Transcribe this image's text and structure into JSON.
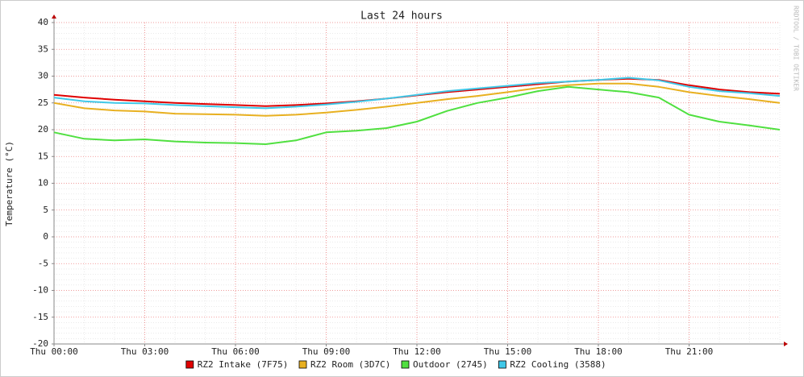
{
  "chart_data": {
    "type": "line",
    "title": "Last 24 hours",
    "y_label": "Temperature (°C)",
    "watermark": "RRDTOOL / TOBI OETIKER",
    "x": [
      0,
      1,
      2,
      3,
      4,
      5,
      6,
      7,
      8,
      9,
      10,
      11,
      12,
      13,
      14,
      15,
      16,
      17,
      18,
      19,
      20,
      21,
      22,
      23,
      24
    ],
    "xlim": [
      0,
      24
    ],
    "xticks": [
      {
        "value": 0,
        "label": "Thu 00:00"
      },
      {
        "value": 3,
        "label": "Thu 03:00"
      },
      {
        "value": 6,
        "label": "Thu 06:00"
      },
      {
        "value": 9,
        "label": "Thu 09:00"
      },
      {
        "value": 12,
        "label": "Thu 12:00"
      },
      {
        "value": 15,
        "label": "Thu 15:00"
      },
      {
        "value": 18,
        "label": "Thu 18:00"
      },
      {
        "value": 21,
        "label": "Thu 21:00"
      }
    ],
    "ylim": [
      -20,
      40
    ],
    "yticks": [
      -20,
      -15,
      -10,
      -5,
      0,
      5,
      10,
      15,
      20,
      25,
      30,
      35,
      40
    ],
    "grid": true,
    "series": [
      {
        "name": "RZ2 Intake (7F75)",
        "color": "#e00000",
        "values": [
          26.5,
          26.0,
          25.6,
          25.3,
          25.0,
          24.8,
          24.6,
          24.4,
          24.6,
          24.9,
          25.3,
          25.8,
          26.4,
          27.0,
          27.5,
          28.0,
          28.5,
          29.0,
          29.3,
          29.5,
          29.3,
          28.3,
          27.5,
          27.0,
          26.7
        ]
      },
      {
        "name": "RZ2 Room (3D7C)",
        "color": "#e8b020",
        "values": [
          25.0,
          24.0,
          23.6,
          23.4,
          23.0,
          22.9,
          22.8,
          22.6,
          22.8,
          23.2,
          23.7,
          24.3,
          25.0,
          25.7,
          26.3,
          27.0,
          27.8,
          28.3,
          28.6,
          28.6,
          28.0,
          27.0,
          26.3,
          25.7,
          25.0
        ]
      },
      {
        "name": "Outdoor (2745)",
        "color": "#50e040",
        "values": [
          19.5,
          18.3,
          18.0,
          18.2,
          17.8,
          17.6,
          17.5,
          17.3,
          18.0,
          19.5,
          19.8,
          20.3,
          21.5,
          23.5,
          25.0,
          26.0,
          27.2,
          28.0,
          27.5,
          27.0,
          26.0,
          22.8,
          21.5,
          20.8,
          20.0
        ]
      },
      {
        "name": "RZ2 Cooling (3588)",
        "color": "#40c8e8",
        "values": [
          26.0,
          25.3,
          25.0,
          24.9,
          24.6,
          24.4,
          24.2,
          24.0,
          24.3,
          24.7,
          25.2,
          25.8,
          26.5,
          27.2,
          27.7,
          28.2,
          28.7,
          29.0,
          29.3,
          29.7,
          29.2,
          28.0,
          27.2,
          26.8,
          26.3
        ]
      }
    ]
  }
}
